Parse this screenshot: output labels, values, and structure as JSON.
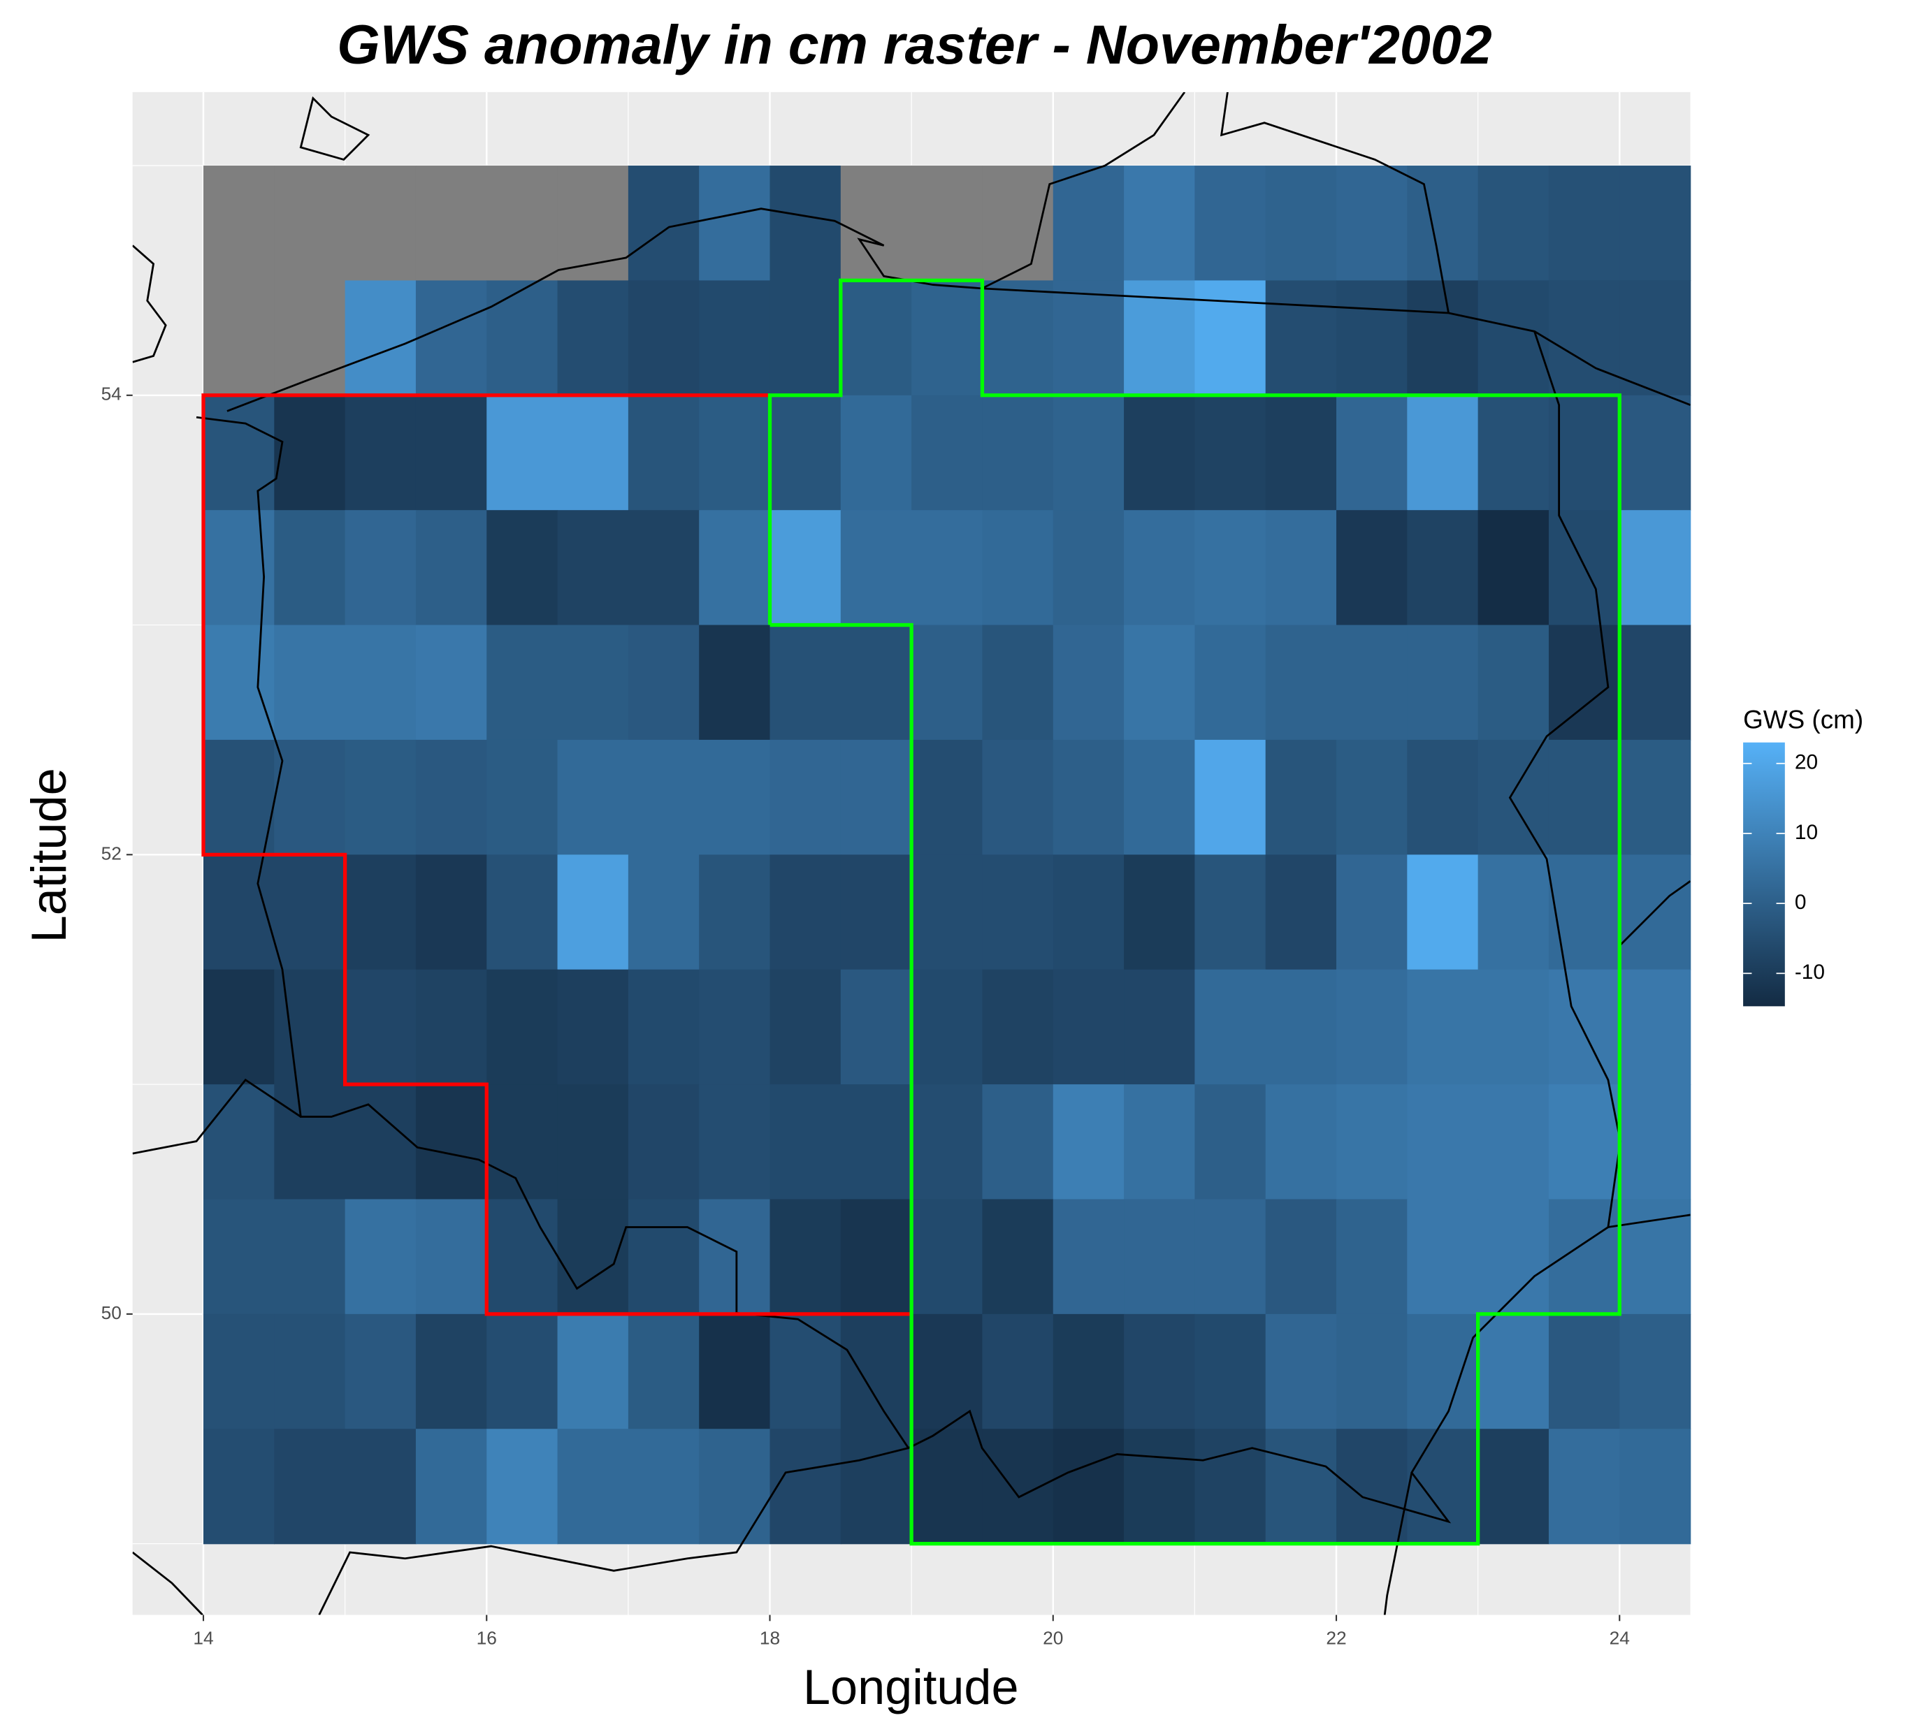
{
  "chart_data": {
    "type": "heatmap",
    "title": "GWS anomaly in cm raster - November'2002",
    "x_label": "Longitude",
    "y_label": "Latitude",
    "xlim": [
      13.5,
      24.5
    ],
    "ylim": [
      48.69,
      55.32
    ],
    "xticks": [
      14,
      16,
      18,
      20,
      22,
      24
    ],
    "yticks": [
      50,
      52,
      54
    ],
    "grid": true,
    "minor_grid": true,
    "na_color": "#7f7f7f",
    "x": [
      14.25,
      14.75,
      15.25,
      15.75,
      16.25,
      16.75,
      17.25,
      17.75,
      18.25,
      18.75,
      19.25,
      19.75,
      20.25,
      20.75,
      21.25,
      21.75,
      22.25,
      22.75,
      23.25,
      23.75,
      24.25
    ],
    "y": [
      54.75,
      54.25,
      53.75,
      53.25,
      52.75,
      52.25,
      51.75,
      51.25,
      50.75,
      50.25,
      49.75,
      49.25
    ],
    "z": [
      [
        null,
        null,
        null,
        null,
        null,
        null,
        -5,
        4,
        -6,
        null,
        null,
        null,
        2,
        7,
        2,
        1,
        2,
        0,
        -3,
        -4,
        -4
      ],
      [
        null,
        null,
        13,
        2,
        0,
        -5,
        -7,
        -6,
        -6,
        -1,
        1,
        1,
        2,
        17,
        21,
        -5,
        -6,
        -9,
        -6,
        -5,
        -5
      ],
      [
        -3,
        -12,
        -9,
        -9,
        16,
        16,
        -3,
        -1,
        -3,
        3,
        0,
        0,
        1,
        -9,
        -8,
        -9,
        2,
        16,
        -4,
        -5,
        -2
      ],
      [
        5,
        -1,
        2,
        0,
        -10,
        -8,
        -8,
        5,
        17,
        4,
        4,
        3,
        1,
        4,
        5,
        4,
        -11,
        -8,
        -14,
        -6,
        16
      ],
      [
        8,
        6,
        6,
        7,
        -1,
        -1,
        -2,
        -12,
        -4,
        -4,
        0,
        -3,
        2,
        6,
        3,
        1,
        1,
        1,
        -1,
        -11,
        -7
      ],
      [
        -4,
        -2,
        -1,
        -2,
        -1,
        3,
        3,
        3,
        2,
        2,
        -5,
        -2,
        0,
        3,
        20,
        -3,
        -1,
        -4,
        -3,
        -3,
        -1
      ],
      [
        -7,
        -7,
        -9,
        -11,
        -4,
        18,
        3,
        -3,
        -7,
        -7,
        -5,
        -5,
        -6,
        -10,
        -3,
        -7,
        2,
        21,
        5,
        3,
        3
      ],
      [
        -12,
        -9,
        -7,
        -8,
        -10,
        -9,
        -6,
        -5,
        -8,
        -2,
        -6,
        -8,
        -7,
        -7,
        3,
        3,
        4,
        6,
        6,
        7,
        7
      ],
      [
        -4,
        -9,
        -9,
        -12,
        -10,
        -10,
        -7,
        -5,
        -6,
        -6,
        -5,
        0,
        9,
        5,
        0,
        5,
        6,
        7,
        7,
        9,
        7
      ],
      [
        -3,
        -3,
        5,
        4,
        -6,
        -10,
        -6,
        2,
        -10,
        -12,
        -6,
        -10,
        2,
        2,
        2,
        -2,
        1,
        7,
        7,
        4,
        6
      ],
      [
        -4,
        -4,
        -2,
        -8,
        -5,
        8,
        -1,
        -13,
        -5,
        -9,
        -11,
        -7,
        -10,
        -7,
        -6,
        2,
        1,
        3,
        7,
        -2,
        0
      ],
      [
        -5,
        -7,
        -7,
        3,
        10,
        3,
        3,
        1,
        -7,
        -9,
        -12,
        -12,
        -13,
        -10,
        -8,
        -3,
        -7,
        -5,
        -9,
        4,
        3
      ]
    ],
    "colorbar": {
      "title": "GWS (cm)",
      "limits": [
        -14.7,
        23
      ],
      "ticks": [
        -10,
        0,
        10,
        20
      ],
      "colors": [
        "#132b43",
        "#56b1f7"
      ]
    },
    "outlines": [
      {
        "color": "#ff0000",
        "lon": [
          18,
          14,
          14,
          15,
          15,
          16,
          16,
          19
        ],
        "lat": [
          54,
          54,
          52,
          52,
          51,
          51,
          50,
          50
        ]
      },
      {
        "color": "#00ff00",
        "lon": [
          18,
          18,
          18.5,
          18.5,
          19.5,
          19.5,
          24,
          24,
          23,
          23,
          19,
          19,
          18
        ],
        "lat": [
          53,
          54,
          54,
          54.5,
          54.5,
          54,
          54,
          50,
          50,
          49,
          49,
          53,
          53
        ]
      }
    ]
  }
}
